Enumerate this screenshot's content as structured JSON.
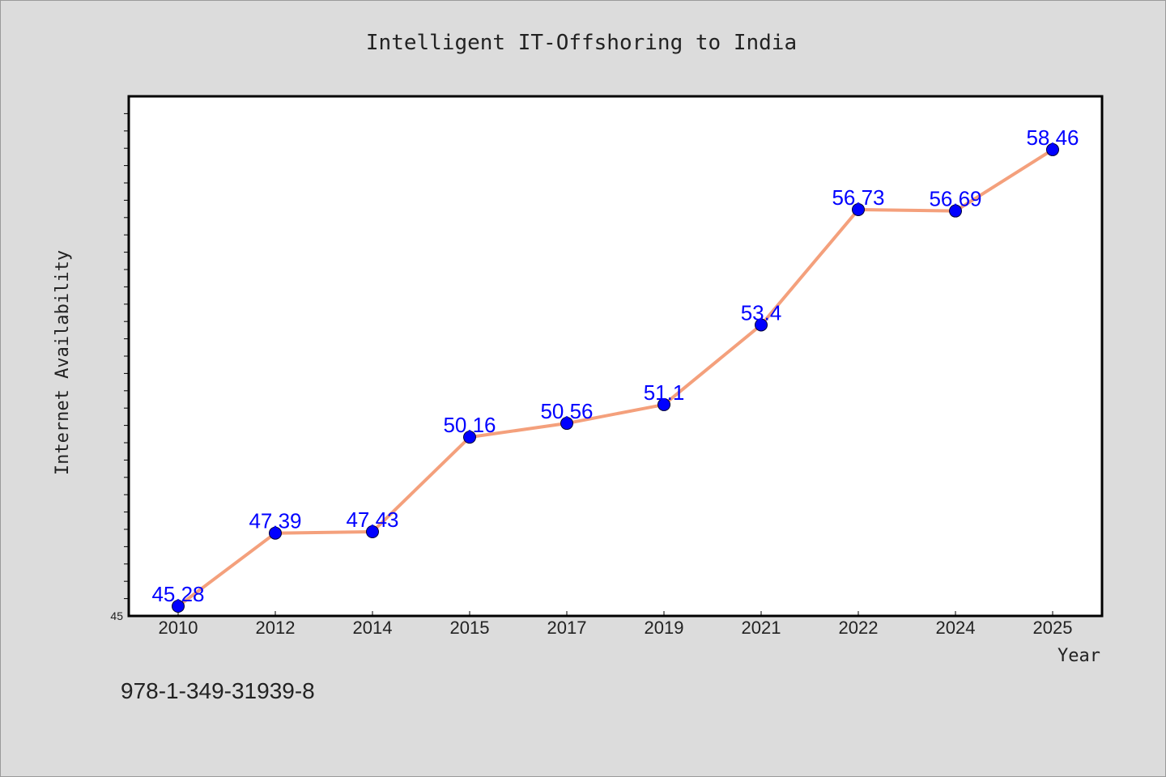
{
  "chart_data": {
    "type": "line",
    "title": "Intelligent IT-Offshoring to India",
    "xlabel": "Year",
    "ylabel": "Internet Availability",
    "categories": [
      "2010",
      "2012",
      "2014",
      "2015",
      "2017",
      "2019",
      "2021",
      "2022",
      "2024",
      "2025"
    ],
    "series": [
      {
        "values": [
          45.28,
          47.39,
          47.43,
          50.16,
          50.56,
          51.1,
          53.4,
          56.73,
          56.69,
          58.46
        ],
        "data_labels": [
          "45.28",
          "47.39",
          "47.43",
          "50.16",
          "50.56",
          "51.1",
          "53.4",
          "56.73",
          "56.69",
          "58.46"
        ]
      }
    ],
    "ylim": [
      45,
      60
    ],
    "yticks_labeled": [
      "45"
    ],
    "grid": false,
    "legend": "none",
    "colors": {
      "line": "#f4a07c",
      "marker": "#0000ff",
      "data_label": "#0000ff",
      "plot_background": "#ffffff",
      "figure_background": "#dcdcdc"
    }
  },
  "footer": {
    "isbn": "978-1-349-31939-8"
  }
}
